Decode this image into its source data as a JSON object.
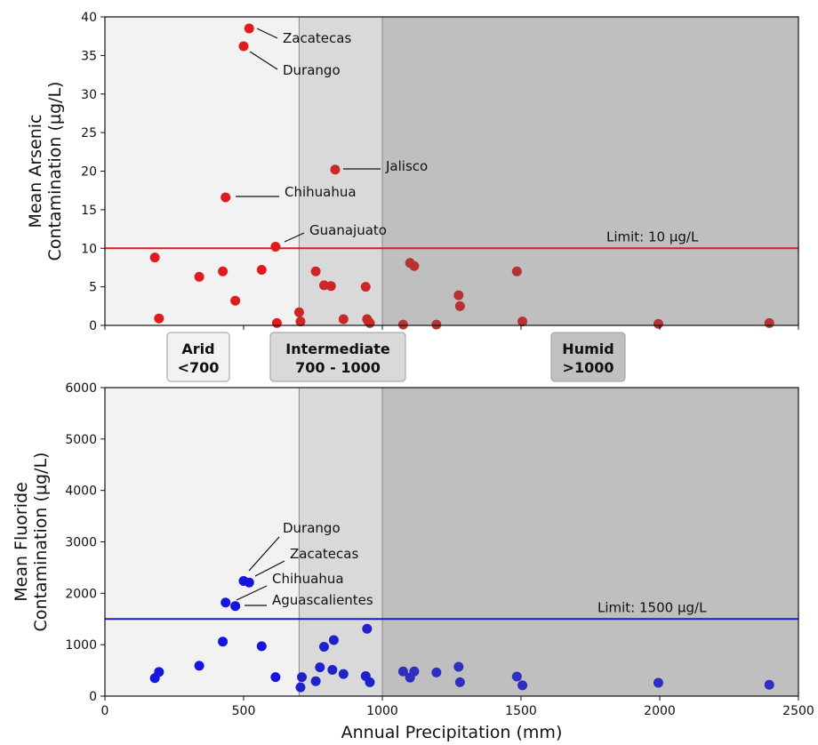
{
  "chart_data": [
    {
      "type": "scatter",
      "ylabel": "Mean Arsenic\nContamination (µg/L)",
      "xlim": [
        0,
        2500
      ],
      "ylim": [
        0,
        40
      ],
      "yticks": [
        0,
        5,
        10,
        15,
        20,
        25,
        30,
        35,
        40
      ],
      "xticks": [
        0,
        500,
        1000,
        1500,
        2000,
        2500
      ],
      "show_x_tick_labels": false,
      "grid": false,
      "point_color": "#e31a1c",
      "limit": {
        "value": 10,
        "label": "Limit: 10 µg/L",
        "color": "#e31a1c"
      },
      "series": [
        {
          "x": [
            520,
            500,
            830,
            435,
            615,
            180,
            195,
            340,
            425,
            470,
            565,
            620,
            700,
            705,
            760,
            790,
            815,
            860,
            940,
            945,
            950,
            955,
            1075,
            1100,
            1115,
            1195,
            1275,
            1280,
            1485,
            1505,
            1995,
            2395
          ],
          "y": [
            38.5,
            36.2,
            20.2,
            16.6,
            10.2,
            8.8,
            0.9,
            6.3,
            7.0,
            3.2,
            7.2,
            0.3,
            1.7,
            0.5,
            7.0,
            5.2,
            5.1,
            0.8,
            5.0,
            0.8,
            0.5,
            0.3,
            0.1,
            8.1,
            7.7,
            0.1,
            3.9,
            2.5,
            7.0,
            0.5,
            0.2,
            0.3
          ]
        }
      ],
      "annotations": [
        {
          "text": "Zacatecas",
          "x": 520,
          "y": 38.5
        },
        {
          "text": "Durango",
          "x": 500,
          "y": 36.2
        },
        {
          "text": "Jalisco",
          "x": 830,
          "y": 20.2
        },
        {
          "text": "Chihuahua",
          "x": 435,
          "y": 16.6
        },
        {
          "text": "Guanajuato",
          "x": 615,
          "y": 10.2
        }
      ]
    },
    {
      "type": "scatter",
      "ylabel": "Mean Fluoride\nContamination (µg/L)",
      "xlabel": "Annual Precipitation (mm)",
      "xlim": [
        0,
        2500
      ],
      "ylim": [
        0,
        6000
      ],
      "yticks": [
        0,
        1000,
        2000,
        3000,
        4000,
        5000,
        6000
      ],
      "xticks": [
        0,
        500,
        1000,
        1500,
        2000,
        2500
      ],
      "show_x_tick_labels": true,
      "grid": false,
      "point_color": "#1515e0",
      "limit": {
        "value": 1500,
        "label": "Limit: 1500 µg/L",
        "color": "#1a1ad6"
      },
      "series": [
        {
          "x": [
            500,
            520,
            435,
            470,
            180,
            195,
            340,
            425,
            565,
            615,
            705,
            710,
            760,
            775,
            790,
            820,
            825,
            860,
            940,
            945,
            955,
            1075,
            1100,
            1115,
            1195,
            1275,
            1280,
            1485,
            1505,
            1995,
            2395
          ],
          "y": [
            2240,
            2210,
            1820,
            1750,
            350,
            470,
            590,
            1060,
            970,
            370,
            170,
            370,
            290,
            560,
            960,
            510,
            1090,
            430,
            390,
            1310,
            270,
            480,
            360,
            480,
            460,
            570,
            270,
            380,
            210,
            260,
            220
          ]
        }
      ],
      "annotations": [
        {
          "text": "Durango",
          "x": 500,
          "y": 2240
        },
        {
          "text": "Zacatecas",
          "x": 520,
          "y": 2210
        },
        {
          "text": "Chihuahua",
          "x": 435,
          "y": 1820
        },
        {
          "text": "Aguascalientes",
          "x": 470,
          "y": 1750
        }
      ]
    }
  ],
  "zones": [
    {
      "label_lines": [
        "Arid",
        "<700"
      ],
      "from": 0,
      "to": 700,
      "fill": "#f2f2f2",
      "box_fill": "#f2f2f2"
    },
    {
      "label_lines": [
        "Intermediate",
        "700 - 1000"
      ],
      "from": 700,
      "to": 1000,
      "fill": "#d9d9d9",
      "box_fill": "#d9d9d9"
    },
    {
      "label_lines": [
        "Humid",
        ">1000"
      ],
      "from": 1000,
      "to": 2500,
      "fill": "#bfbfbf",
      "box_fill": "#c0c0c0"
    }
  ]
}
